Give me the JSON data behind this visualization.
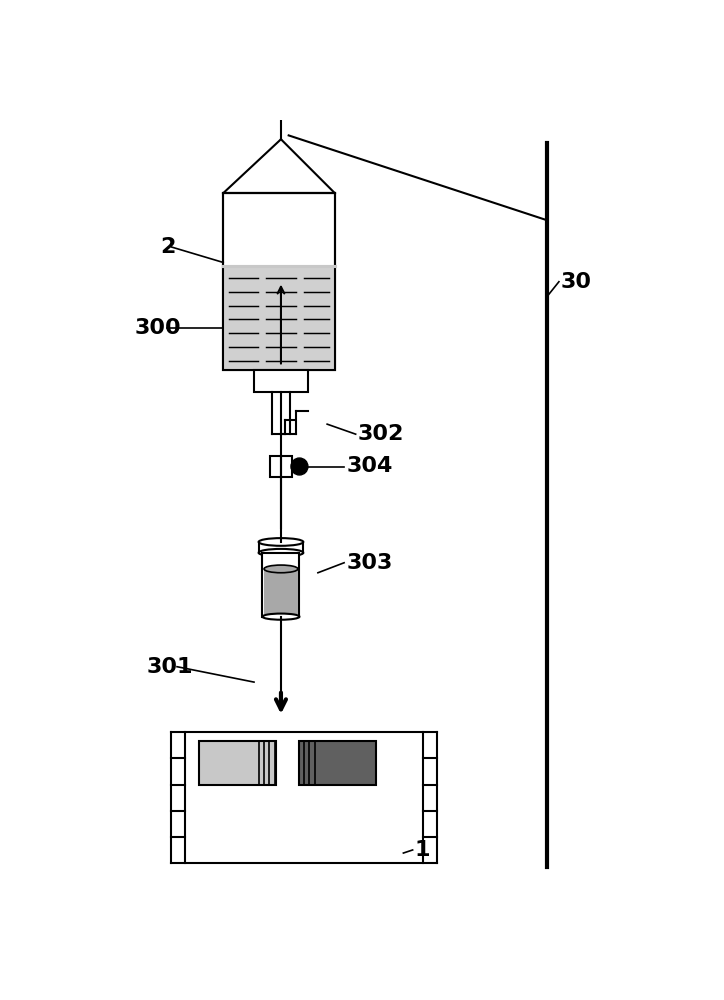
{
  "bg_color": "#ffffff",
  "line_color": "#000000",
  "gray_light": "#c8c8c8",
  "gray_medium": "#a8a8a8",
  "gray_dark": "#606060",
  "gray_fill": "#d0d0d0",
  "label_2": "2",
  "label_300": "300",
  "label_301": "301",
  "label_302": "302",
  "label_303": "303",
  "label_304": "304",
  "label_1": "1",
  "label_30": "30",
  "font_size": 16,
  "line_width": 1.5
}
